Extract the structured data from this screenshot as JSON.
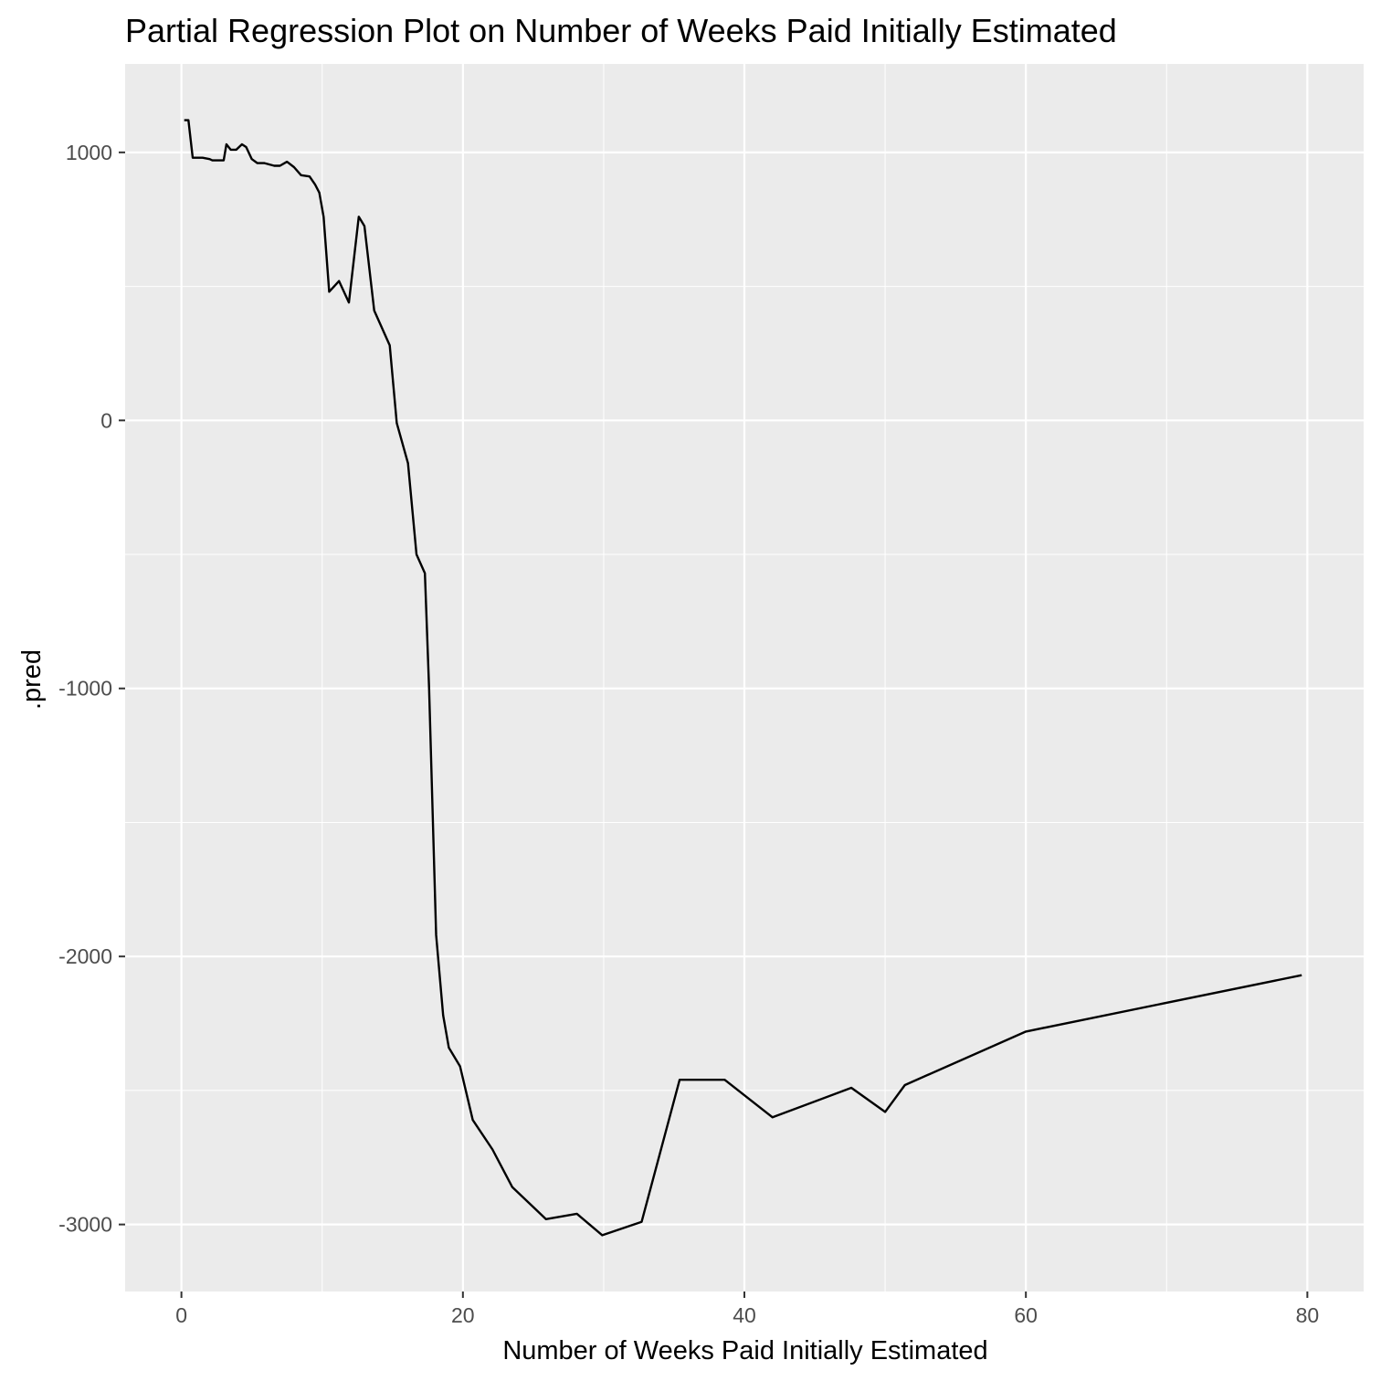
{
  "chart_data": {
    "type": "line",
    "title": "Partial Regression Plot on Number of Weeks Paid Initially Estimated",
    "xlabel": "Number of Weeks Paid Initially Estimated",
    "ylabel": ".pred",
    "xlim": [
      -4,
      84
    ],
    "ylim": [
      -3250,
      1330
    ],
    "x_ticks": [
      0,
      20,
      40,
      60,
      80
    ],
    "x_tick_labels": [
      "0",
      "20",
      "40",
      "60",
      "80"
    ],
    "y_ticks": [
      -3000,
      -2000,
      -1000,
      0,
      1000
    ],
    "y_tick_labels": [
      "-3000",
      "-2000",
      "-1000",
      "0",
      "1000"
    ],
    "grid": true,
    "legend": "none",
    "colors": {
      "panel": "#ebebeb",
      "grid": "#ffffff",
      "line": "#000000"
    },
    "series": [
      {
        "x": [
          0.2,
          0.5,
          0.8,
          1.5,
          2.0,
          2.2,
          3.0,
          3.2,
          3.5,
          3.9,
          4.3,
          4.6,
          5.0,
          5.4,
          5.9,
          6.6,
          7.0,
          7.5,
          8.0,
          8.5,
          9.1,
          9.5,
          9.8,
          10.1,
          10.5,
          11.2,
          11.9,
          12.6,
          13.0,
          13.7,
          14.8,
          15.3,
          16.1,
          16.7,
          17.3,
          17.6,
          18.1,
          18.6,
          19.0,
          19.8,
          20.7,
          22.1,
          23.5,
          25.1,
          25.9,
          28.1,
          29.9,
          32.7,
          35.4,
          38.6,
          42.0,
          47.6,
          50.0,
          51.4,
          60.0,
          79.6
        ],
        "y": [
          1120,
          1120,
          980,
          980,
          975,
          970,
          970,
          1030,
          1010,
          1010,
          1030,
          1020,
          975,
          960,
          960,
          950,
          950,
          965,
          945,
          915,
          910,
          880,
          850,
          760,
          480,
          520,
          440,
          760,
          725,
          410,
          280,
          -10,
          -160,
          -500,
          -570,
          -1000,
          -1920,
          -2220,
          -2340,
          -2410,
          -2610,
          -2720,
          -2860,
          -2940,
          -2980,
          -2960,
          -3040,
          -2990,
          -2460,
          -2460,
          -2600,
          -2490,
          -2580,
          -2480,
          -2280,
          -2070
        ]
      }
    ]
  }
}
